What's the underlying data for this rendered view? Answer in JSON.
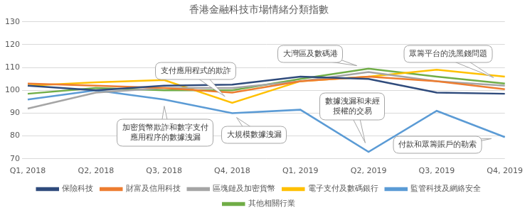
{
  "chart_data": {
    "type": "line",
    "title": "香港金融科技市場情緒分類指數",
    "categories": [
      "Q1, 2018",
      "Q2, 2018",
      "Q3, 2018",
      "Q4, 2018",
      "Q1, 2019",
      "Q2, 2019",
      "Q3, 2019",
      "Q4, 2019"
    ],
    "series": [
      {
        "name": "保險科技",
        "color": "#2f4b7c",
        "values": [
          102,
          100,
          102,
          102.5,
          106,
          105,
          99,
          98.5
        ]
      },
      {
        "name": "財富及信用科技",
        "color": "#ed7d31",
        "values": [
          103,
          102,
          101,
          99,
          104,
          106,
          104,
          100.5
        ]
      },
      {
        "name": "區塊鏈及加密貨幣",
        "color": "#a5a5a5",
        "values": [
          92,
          99,
          101,
          101,
          104,
          108,
          104,
          102
        ]
      },
      {
        "name": "電子支付及數碼銀行",
        "color": "#ffc000",
        "values": [
          102,
          103.5,
          104.5,
          94.5,
          104,
          106,
          109,
          106
        ]
      },
      {
        "name": "監管科技及網絡安全",
        "color": "#5b9bd5",
        "values": [
          96,
          100,
          96,
          90,
          91.5,
          73,
          91,
          79.5
        ]
      },
      {
        "name": "其他相關行業",
        "color": "#70ad47",
        "values": [
          98.5,
          101,
          100,
          100,
          105,
          109.5,
          106,
          103
        ]
      }
    ],
    "ylim": [
      70,
      130
    ],
    "yticks": [
      70,
      80,
      90,
      100,
      110,
      120,
      130
    ],
    "grid": true,
    "legend": "bottom",
    "annotations": [
      {
        "text": [
          "支付應用程式的欺詐"
        ],
        "category": "Q4, 2018",
        "series": "電子支付及數碼銀行"
      },
      {
        "text": [
          "大灣區及數碼港"
        ],
        "category": "Q2, 2019",
        "series": "其他相關行業"
      },
      {
        "text": [
          "眾籌平台的洗黑錢問題"
        ],
        "category": "Q4, 2019",
        "series": "其他相關行業"
      },
      {
        "text": [
          "加密貨幣欺詐和數字支付",
          "應用程序的數據洩漏"
        ],
        "category": "Q3, 2018",
        "series": "監管科技及網絡安全"
      },
      {
        "text": [
          "大規模數據洩漏"
        ],
        "category": "Q4, 2018",
        "series": "監管科技及網絡安全"
      },
      {
        "text": [
          "數據洩漏和未經",
          "授權的交易"
        ],
        "category": "Q2, 2019",
        "series": "監管科技及網絡安全"
      },
      {
        "text": [
          "付款和眾籌賬戶的勒索"
        ],
        "category": "Q4, 2019",
        "series": "監管科技及網絡安全"
      }
    ]
  }
}
